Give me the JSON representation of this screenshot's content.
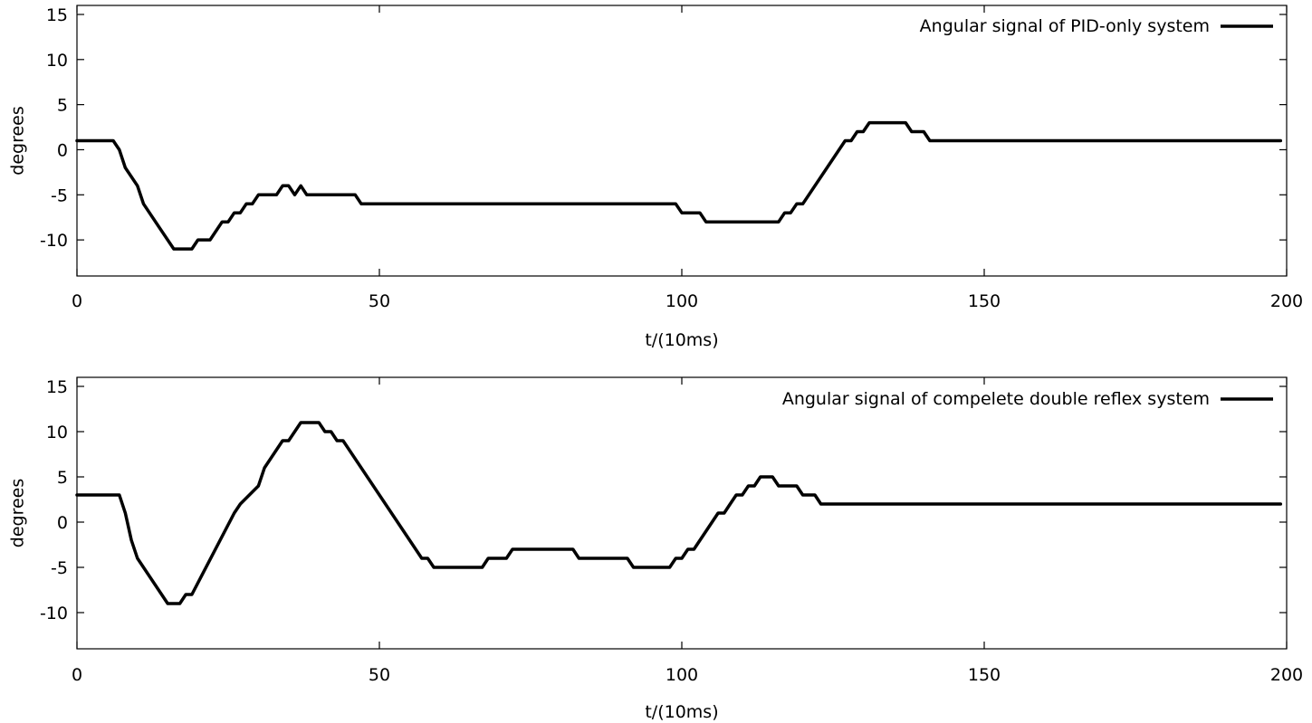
{
  "chart_data": [
    {
      "type": "line",
      "xlabel": "t/(10ms)",
      "ylabel": "degrees",
      "xlim": [
        0,
        200
      ],
      "ylim": [
        -14,
        16
      ],
      "xticks": [
        0,
        50,
        100,
        150,
        200
      ],
      "yticks": [
        15,
        10,
        5,
        0,
        -5,
        -10
      ],
      "grid": false,
      "legend_position": "top-right",
      "series": [
        {
          "name": "Angular signal of PID-only system",
          "color": "#000000",
          "x": [
            0,
            6,
            7,
            8,
            10,
            11,
            14,
            16,
            19,
            20,
            22,
            24,
            25,
            26,
            27,
            28,
            29,
            30,
            33,
            34,
            35,
            36,
            37,
            38,
            46,
            47,
            99,
            100,
            103,
            104,
            116,
            117,
            118,
            119,
            120,
            127,
            128,
            129,
            130,
            131,
            137,
            138,
            140,
            141,
            199
          ],
          "y": [
            1,
            1,
            0,
            -2,
            -4,
            -6,
            -9,
            -11,
            -11,
            -10,
            -10,
            -8,
            -8,
            -7,
            -7,
            -6,
            -6,
            -5,
            -5,
            -4,
            -4,
            -5,
            -4,
            -5,
            -5,
            -6,
            -6,
            -7,
            -7,
            -8,
            -8,
            -7,
            -7,
            -6,
            -6,
            1,
            1,
            2,
            2,
            3,
            3,
            2,
            2,
            1,
            1
          ]
        }
      ]
    },
    {
      "type": "line",
      "xlabel": "t/(10ms)",
      "ylabel": "degrees",
      "xlim": [
        0,
        200
      ],
      "ylim": [
        -14,
        16
      ],
      "xticks": [
        0,
        50,
        100,
        150,
        200
      ],
      "yticks": [
        15,
        10,
        5,
        0,
        -5,
        -10
      ],
      "grid": false,
      "legend_position": "top-right",
      "series": [
        {
          "name": "Angular signal of compelete double reflex system",
          "color": "#000000",
          "x": [
            0,
            7,
            8,
            9,
            10,
            15,
            17,
            18,
            19,
            26,
            27,
            30,
            31,
            34,
            35,
            37,
            40,
            41,
            42,
            43,
            44,
            57,
            58,
            59,
            67,
            68,
            71,
            72,
            82,
            83,
            91,
            92,
            98,
            99,
            100,
            101,
            102,
            106,
            107,
            108,
            109,
            110,
            111,
            112,
            113,
            115,
            116,
            119,
            120,
            122,
            123,
            199
          ],
          "y": [
            3,
            3,
            1,
            -2,
            -4,
            -9,
            -9,
            -8,
            -8,
            1,
            2,
            4,
            6,
            9,
            9,
            11,
            11,
            10,
            10,
            9,
            9,
            -4,
            -4,
            -5,
            -5,
            -4,
            -4,
            -3,
            -3,
            -4,
            -4,
            -5,
            -5,
            -4,
            -4,
            -3,
            -3,
            1,
            1,
            2,
            3,
            3,
            4,
            4,
            5,
            5,
            4,
            4,
            3,
            3,
            2,
            2
          ]
        }
      ]
    }
  ]
}
